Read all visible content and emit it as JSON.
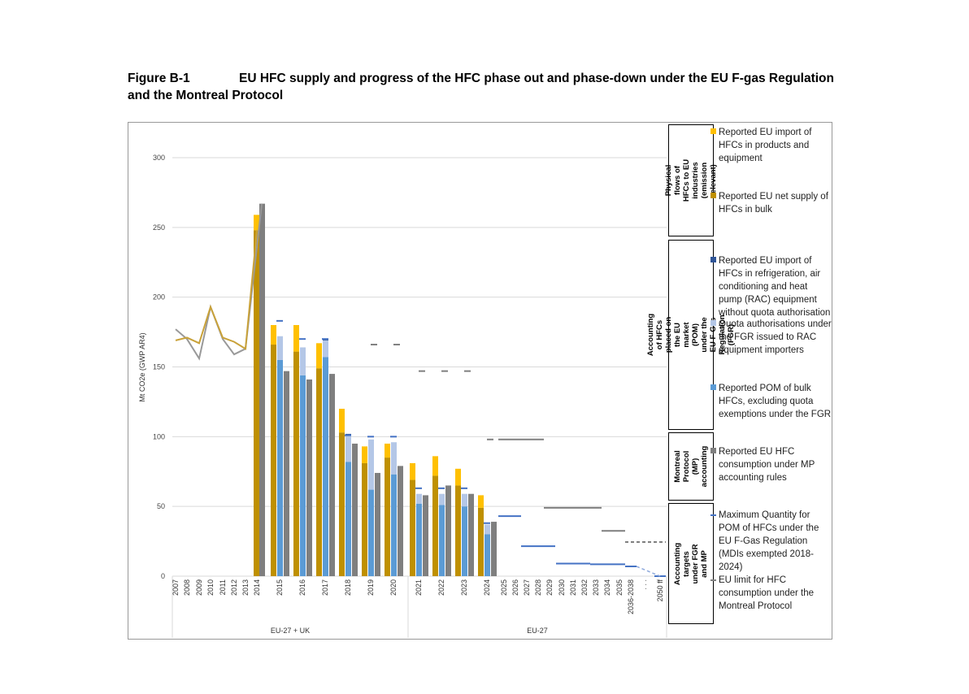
{
  "figure": {
    "label": "Figure B-1",
    "title": "EU HFC supply and progress of the HFC phase out and phase-down under the EU F-gas Regulation and the Montreal Protocol"
  },
  "chart_data": {
    "type": "bar",
    "ylabel": "Mt CO2e (GWP AR4)",
    "ylim": [
      0,
      300
    ],
    "yticks": [
      0,
      50,
      100,
      150,
      200,
      250,
      300
    ],
    "grid": true,
    "legend_position": "right",
    "categories": [
      "2007",
      "2008",
      "2009",
      "2010",
      "2011",
      "2012",
      "2013",
      "2014",
      "2015",
      "2016",
      "2017",
      "2018",
      "2019",
      "2020",
      "2021",
      "2022",
      "2023",
      "2024",
      "2025",
      "2026",
      "2027",
      "2028",
      "2029",
      "2030",
      "2031",
      "2032",
      "2033",
      "2034",
      "2035",
      "2036-2038",
      ". . .",
      "2050 ff"
    ],
    "region_labels": [
      "EU-27 + UK",
      "EU-27"
    ],
    "colors": {
      "import_products": "#FFC000",
      "net_bulk": "#BF9000",
      "rac_no_quota": "#2F5597",
      "quota_auth": "#B4C7E7",
      "pom": "#5B9BD5",
      "mp_consumption": "#7F7F7F",
      "max_quantity": "#4472C4",
      "mp_limit": "#7F7F7F"
    },
    "pre2014_lines": {
      "years": [
        "2007",
        "2008",
        "2009",
        "2010",
        "2011",
        "2012",
        "2013",
        "2014"
      ],
      "net_bulk": [
        169,
        171,
        167,
        193,
        171,
        168,
        163,
        248
      ],
      "mp_consumption": [
        177,
        170,
        156,
        193,
        170,
        159,
        163,
        267
      ]
    },
    "bars": {
      "years": [
        "2014",
        "2015",
        "2016",
        "2017",
        "2018",
        "2019",
        "2020",
        "2021",
        "2022",
        "2023",
        "2024"
      ],
      "net_bulk": [
        248,
        166,
        161,
        149,
        103,
        81,
        85,
        69,
        72,
        65,
        49
      ],
      "import_products": [
        11,
        14,
        19,
        18,
        17,
        12,
        10,
        12,
        14,
        12,
        9
      ],
      "pom": [
        null,
        155,
        144,
        157,
        82,
        62,
        73,
        52,
        51,
        50,
        30
      ],
      "quota_auth": [
        null,
        17,
        20,
        12,
        19,
        36,
        23,
        7,
        8,
        9,
        7
      ],
      "rac_no_quota": [
        null,
        0,
        0,
        1,
        1,
        0,
        0,
        0,
        0,
        0,
        0
      ],
      "mp_consumption": [
        267,
        147,
        141,
        145,
        95,
        74,
        79,
        58,
        65,
        59,
        39
      ]
    },
    "max_quantity": [
      {
        "from": "2015",
        "to": "2015",
        "value": 183
      },
      {
        "from": "2016",
        "to": "2016",
        "value": 170
      },
      {
        "from": "2017",
        "to": "2017",
        "value": 170
      },
      {
        "from": "2018",
        "to": "2018",
        "value": 101
      },
      {
        "from": "2019",
        "to": "2019",
        "value": 100
      },
      {
        "from": "2020",
        "to": "2020",
        "value": 100
      },
      {
        "from": "2021",
        "to": "2021",
        "value": 63
      },
      {
        "from": "2022",
        "to": "2022",
        "value": 63
      },
      {
        "from": "2023",
        "to": "2023",
        "value": 63
      },
      {
        "from": "2024",
        "to": "2024",
        "value": 38
      },
      {
        "from": "2025",
        "to": "2026",
        "value": 43
      },
      {
        "from": "2027",
        "to": "2029",
        "value": 21.5
      },
      {
        "from": "2030",
        "to": "2032",
        "value": 9
      },
      {
        "from": "2033",
        "to": "2035",
        "value": 8.5
      },
      {
        "from": "2036-2038",
        "to": "2036-2038",
        "value": 7
      },
      {
        "from": "2050 ff",
        "to": "2050 ff",
        "value": 0
      }
    ],
    "mp_limit": [
      {
        "from": "2019",
        "to": "2019",
        "value": 166
      },
      {
        "from": "2020",
        "to": "2020",
        "value": 166
      },
      {
        "from": "2021",
        "to": "2021",
        "value": 147
      },
      {
        "from": "2022",
        "to": "2022",
        "value": 147
      },
      {
        "from": "2023",
        "to": "2023",
        "value": 147
      },
      {
        "from": "2024",
        "to": "2024",
        "value": 98
      },
      {
        "from": "2025",
        "to": "2028",
        "value": 98
      },
      {
        "from": "2029",
        "to": "2033",
        "value": 49
      },
      {
        "from": "2034",
        "to": "2035",
        "value": 32.5
      },
      {
        "from": "2036-2038",
        "to": "2050 ff",
        "value": 24.5
      }
    ]
  },
  "legend": {
    "groups": [
      "Physical flows of HFCs to EU industries (emission relevant)",
      "Accounting of HFCs placed on the EU market (POM) under the EU F-Gas Regulation (FGR)",
      "Montreal Protocol (MP) accounting",
      "Accounting targets under FGR and MP"
    ],
    "items": [
      "Reported EU import of HFCs in products and equipment",
      "Reported EU net supply of HFCs in bulk",
      "Reported EU import of HFCs in refrigeration, air conditioning and heat pump (RAC) equipment without quota authorisation",
      "Quota authorisations under the FGR issued to RAC equipment importers",
      "Reported POM of bulk HFCs, excluding quota exemptions under the FGR",
      "Reported EU HFC consumption under MP accounting rules",
      "Maximum Quantity for POM of HFCs under the EU F-Gas Regulation (MDIs exempted 2018-2024)",
      "EU limit for HFC consumption under the Montreal Protocol"
    ]
  }
}
